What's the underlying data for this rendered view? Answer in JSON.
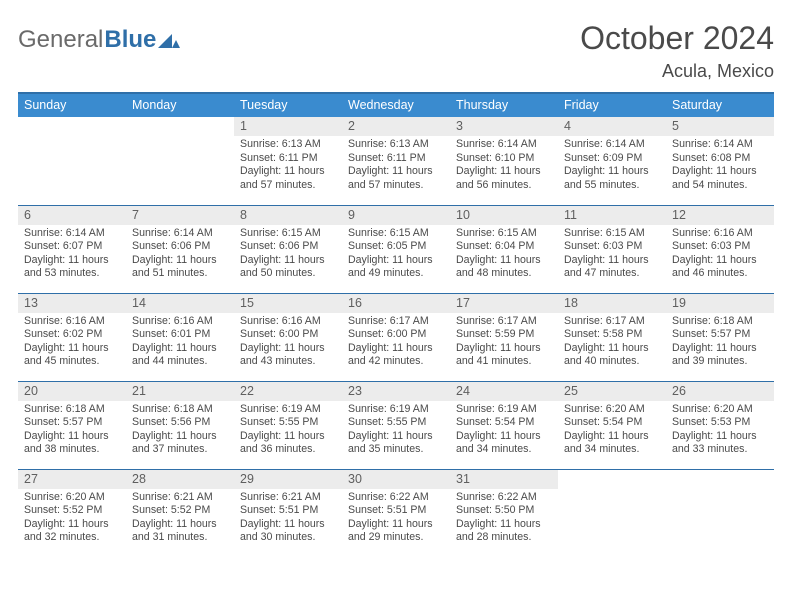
{
  "brand": {
    "part1": "General",
    "part2": "Blue"
  },
  "title": "October 2024",
  "location": "Acula, Mexico",
  "colors": {
    "header_bg": "#3a8bcf",
    "rule": "#2f6fa8",
    "daynum_bg": "#ececec",
    "text": "#4a4a4a"
  },
  "weekdays": [
    "Sunday",
    "Monday",
    "Tuesday",
    "Wednesday",
    "Thursday",
    "Friday",
    "Saturday"
  ],
  "weeks": [
    [
      null,
      null,
      {
        "n": "1",
        "sr": "Sunrise: 6:13 AM",
        "ss": "Sunset: 6:11 PM",
        "dl": "Daylight: 11 hours and 57 minutes."
      },
      {
        "n": "2",
        "sr": "Sunrise: 6:13 AM",
        "ss": "Sunset: 6:11 PM",
        "dl": "Daylight: 11 hours and 57 minutes."
      },
      {
        "n": "3",
        "sr": "Sunrise: 6:14 AM",
        "ss": "Sunset: 6:10 PM",
        "dl": "Daylight: 11 hours and 56 minutes."
      },
      {
        "n": "4",
        "sr": "Sunrise: 6:14 AM",
        "ss": "Sunset: 6:09 PM",
        "dl": "Daylight: 11 hours and 55 minutes."
      },
      {
        "n": "5",
        "sr": "Sunrise: 6:14 AM",
        "ss": "Sunset: 6:08 PM",
        "dl": "Daylight: 11 hours and 54 minutes."
      }
    ],
    [
      {
        "n": "6",
        "sr": "Sunrise: 6:14 AM",
        "ss": "Sunset: 6:07 PM",
        "dl": "Daylight: 11 hours and 53 minutes."
      },
      {
        "n": "7",
        "sr": "Sunrise: 6:14 AM",
        "ss": "Sunset: 6:06 PM",
        "dl": "Daylight: 11 hours and 51 minutes."
      },
      {
        "n": "8",
        "sr": "Sunrise: 6:15 AM",
        "ss": "Sunset: 6:06 PM",
        "dl": "Daylight: 11 hours and 50 minutes."
      },
      {
        "n": "9",
        "sr": "Sunrise: 6:15 AM",
        "ss": "Sunset: 6:05 PM",
        "dl": "Daylight: 11 hours and 49 minutes."
      },
      {
        "n": "10",
        "sr": "Sunrise: 6:15 AM",
        "ss": "Sunset: 6:04 PM",
        "dl": "Daylight: 11 hours and 48 minutes."
      },
      {
        "n": "11",
        "sr": "Sunrise: 6:15 AM",
        "ss": "Sunset: 6:03 PM",
        "dl": "Daylight: 11 hours and 47 minutes."
      },
      {
        "n": "12",
        "sr": "Sunrise: 6:16 AM",
        "ss": "Sunset: 6:03 PM",
        "dl": "Daylight: 11 hours and 46 minutes."
      }
    ],
    [
      {
        "n": "13",
        "sr": "Sunrise: 6:16 AM",
        "ss": "Sunset: 6:02 PM",
        "dl": "Daylight: 11 hours and 45 minutes."
      },
      {
        "n": "14",
        "sr": "Sunrise: 6:16 AM",
        "ss": "Sunset: 6:01 PM",
        "dl": "Daylight: 11 hours and 44 minutes."
      },
      {
        "n": "15",
        "sr": "Sunrise: 6:16 AM",
        "ss": "Sunset: 6:00 PM",
        "dl": "Daylight: 11 hours and 43 minutes."
      },
      {
        "n": "16",
        "sr": "Sunrise: 6:17 AM",
        "ss": "Sunset: 6:00 PM",
        "dl": "Daylight: 11 hours and 42 minutes."
      },
      {
        "n": "17",
        "sr": "Sunrise: 6:17 AM",
        "ss": "Sunset: 5:59 PM",
        "dl": "Daylight: 11 hours and 41 minutes."
      },
      {
        "n": "18",
        "sr": "Sunrise: 6:17 AM",
        "ss": "Sunset: 5:58 PM",
        "dl": "Daylight: 11 hours and 40 minutes."
      },
      {
        "n": "19",
        "sr": "Sunrise: 6:18 AM",
        "ss": "Sunset: 5:57 PM",
        "dl": "Daylight: 11 hours and 39 minutes."
      }
    ],
    [
      {
        "n": "20",
        "sr": "Sunrise: 6:18 AM",
        "ss": "Sunset: 5:57 PM",
        "dl": "Daylight: 11 hours and 38 minutes."
      },
      {
        "n": "21",
        "sr": "Sunrise: 6:18 AM",
        "ss": "Sunset: 5:56 PM",
        "dl": "Daylight: 11 hours and 37 minutes."
      },
      {
        "n": "22",
        "sr": "Sunrise: 6:19 AM",
        "ss": "Sunset: 5:55 PM",
        "dl": "Daylight: 11 hours and 36 minutes."
      },
      {
        "n": "23",
        "sr": "Sunrise: 6:19 AM",
        "ss": "Sunset: 5:55 PM",
        "dl": "Daylight: 11 hours and 35 minutes."
      },
      {
        "n": "24",
        "sr": "Sunrise: 6:19 AM",
        "ss": "Sunset: 5:54 PM",
        "dl": "Daylight: 11 hours and 34 minutes."
      },
      {
        "n": "25",
        "sr": "Sunrise: 6:20 AM",
        "ss": "Sunset: 5:54 PM",
        "dl": "Daylight: 11 hours and 34 minutes."
      },
      {
        "n": "26",
        "sr": "Sunrise: 6:20 AM",
        "ss": "Sunset: 5:53 PM",
        "dl": "Daylight: 11 hours and 33 minutes."
      }
    ],
    [
      {
        "n": "27",
        "sr": "Sunrise: 6:20 AM",
        "ss": "Sunset: 5:52 PM",
        "dl": "Daylight: 11 hours and 32 minutes."
      },
      {
        "n": "28",
        "sr": "Sunrise: 6:21 AM",
        "ss": "Sunset: 5:52 PM",
        "dl": "Daylight: 11 hours and 31 minutes."
      },
      {
        "n": "29",
        "sr": "Sunrise: 6:21 AM",
        "ss": "Sunset: 5:51 PM",
        "dl": "Daylight: 11 hours and 30 minutes."
      },
      {
        "n": "30",
        "sr": "Sunrise: 6:22 AM",
        "ss": "Sunset: 5:51 PM",
        "dl": "Daylight: 11 hours and 29 minutes."
      },
      {
        "n": "31",
        "sr": "Sunrise: 6:22 AM",
        "ss": "Sunset: 5:50 PM",
        "dl": "Daylight: 11 hours and 28 minutes."
      },
      null,
      null
    ]
  ]
}
